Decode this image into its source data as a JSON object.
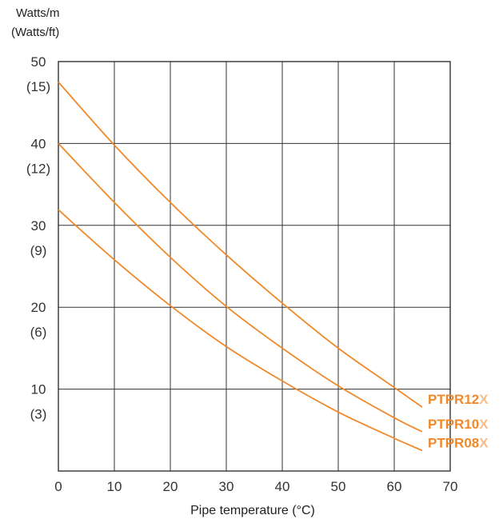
{
  "chart_data": {
    "type": "line",
    "title": "",
    "ylabel_lines": [
      "Watts/m",
      "(Watts/ft)"
    ],
    "xlabel": "Pipe temperature (°C)",
    "xlim": [
      0,
      70
    ],
    "ylim": [
      0,
      50
    ],
    "x_ticks": [
      0,
      10,
      20,
      30,
      40,
      50,
      60,
      70
    ],
    "y_ticks": [
      {
        "value": 50,
        "label": "50",
        "sublabel": "(15)"
      },
      {
        "value": 40,
        "label": "40",
        "sublabel": "(12)"
      },
      {
        "value": 30,
        "label": "30",
        "sublabel": "(9)"
      },
      {
        "value": 20,
        "label": "20",
        "sublabel": "(6)"
      },
      {
        "value": 10,
        "label": "10",
        "sublabel": "(3)"
      }
    ],
    "grid": true,
    "line_color": "#f0892a",
    "series": [
      {
        "name": "PTPR12X",
        "name_main": "PTPR12",
        "name_suffix": "X",
        "x": [
          0,
          10,
          20,
          30,
          40,
          50,
          60,
          65
        ],
        "y": [
          47.5,
          39.8,
          32.8,
          26.4,
          20.5,
          15.0,
          10.2,
          7.8
        ]
      },
      {
        "name": "PTPR10X",
        "name_main": "PTPR10",
        "name_suffix": "X",
        "x": [
          0,
          10,
          20,
          30,
          40,
          50,
          60,
          65
        ],
        "y": [
          40.0,
          32.8,
          26.1,
          20.1,
          15.0,
          10.4,
          6.5,
          4.8
        ]
      },
      {
        "name": "PTPR08X",
        "name_main": "PTPR08",
        "name_suffix": "X",
        "x": [
          0,
          10,
          20,
          30,
          40,
          50,
          60,
          65
        ],
        "y": [
          31.9,
          25.8,
          20.2,
          15.2,
          11.0,
          7.2,
          4.0,
          2.5
        ]
      }
    ],
    "label_colors": {
      "main": "#f0892a",
      "suffix": "#f7be8a"
    }
  }
}
